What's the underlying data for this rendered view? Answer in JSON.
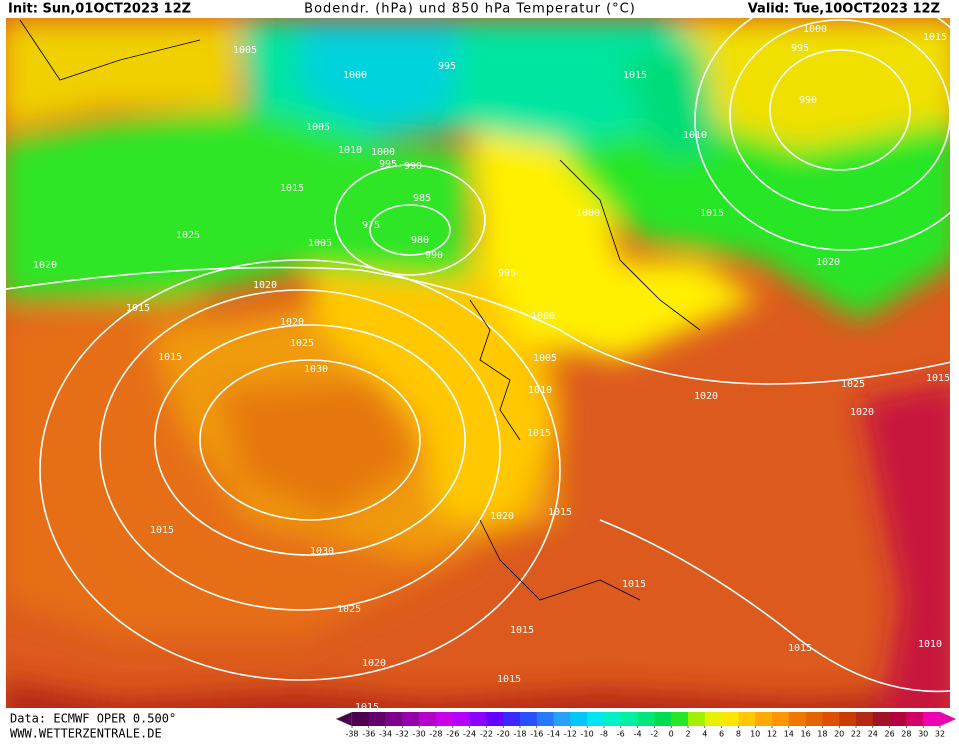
{
  "header": {
    "init": "Init: Sun,01OCT2023 12Z",
    "title": "Bodendr. (hPa) und 850 hPa Temperatur (°C)",
    "valid": "Valid: Tue,10OCT2023 12Z"
  },
  "footer": {
    "data": "Data: ECMWF OPER 0.500°",
    "site": "WWW.WETTERZENTRALE.DE"
  },
  "isobar_labels": [
    "1005",
    "1000",
    "995",
    "1015",
    "995",
    "1000",
    "1015",
    "990",
    "1005",
    "1010",
    "1000",
    "995",
    "990",
    "1010",
    "1015",
    "985",
    "975",
    "1000",
    "1015",
    "1025",
    "1005",
    "980",
    "990",
    "1020",
    "995",
    "1020",
    "1020",
    "1015",
    "1000",
    "1020",
    "1025",
    "1015",
    "1005",
    "1030",
    "1010",
    "1025",
    "1015",
    "1020",
    "1020",
    "1015",
    "1020",
    "1015",
    "1015",
    "1030",
    "1015",
    "1025",
    "1015",
    "1015",
    "1020",
    "1015",
    "1010",
    "1015"
  ],
  "colorbar": {
    "ticks": [
      -38,
      -36,
      -34,
      -32,
      -30,
      -28,
      -26,
      -24,
      -22,
      -20,
      -18,
      -16,
      -14,
      -12,
      -10,
      -8,
      -6,
      -4,
      -2,
      0,
      2,
      4,
      6,
      8,
      10,
      12,
      14,
      16,
      18,
      20,
      22,
      24,
      26,
      28,
      30,
      32
    ],
    "colors": [
      "#4b0050",
      "#64006e",
      "#7d008c",
      "#9600aa",
      "#b400c8",
      "#c800e6",
      "#b400ff",
      "#8c00ff",
      "#6400ff",
      "#3c28ff",
      "#2850ff",
      "#2878ff",
      "#28a0ff",
      "#00c8ff",
      "#00e6f0",
      "#00f0c8",
      "#00f0a0",
      "#00e678",
      "#00dc50",
      "#28e628",
      "#a0f000",
      "#e6f000",
      "#ffe600",
      "#ffc800",
      "#ffaa00",
      "#ff9600",
      "#f07800",
      "#e66400",
      "#dc5000",
      "#c83c00",
      "#b42814",
      "#a01428",
      "#b4003c",
      "#d20064",
      "#f000b4"
    ]
  }
}
